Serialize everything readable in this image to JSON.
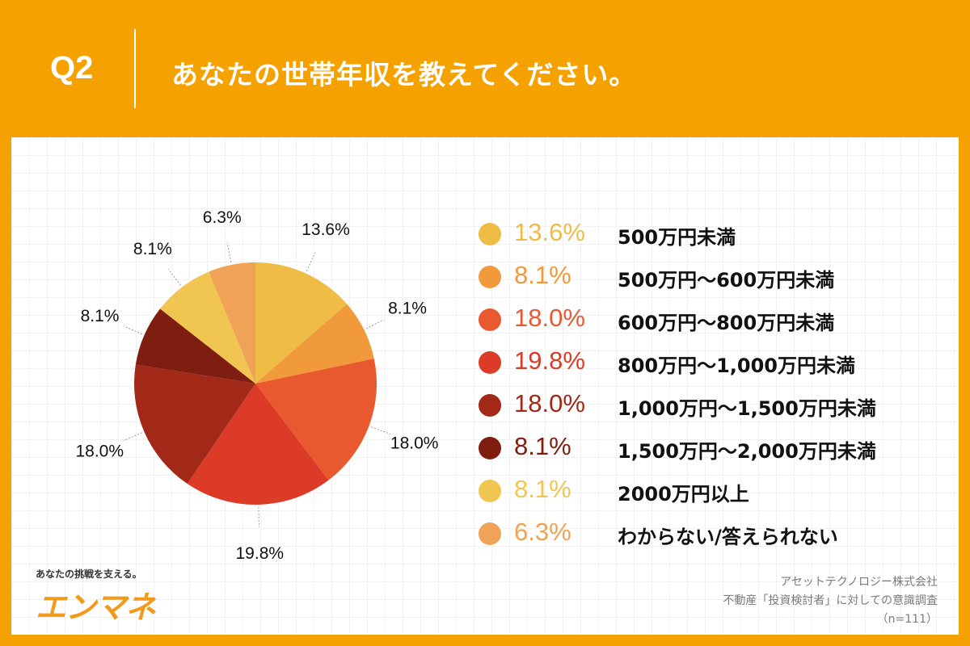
{
  "header": {
    "q_label": "Q2",
    "question": "あなたの世帯年収を教えてください。"
  },
  "colors": {
    "background": "#f5a200",
    "panel": "#ffffff",
    "header_text": "#ffffff"
  },
  "chart_data": {
    "type": "pie",
    "title": "",
    "categories": [
      "500万円未満",
      "500万円〜600万円未満",
      "600万円〜800万円未満",
      "800万円〜1,000万円未満",
      "1,000万円〜1,500万円未満",
      "1,500万円〜2,000万円未満",
      "2000万円以上",
      "わからない/答えられない"
    ],
    "values": [
      13.6,
      8.1,
      18.0,
      19.8,
      18.0,
      8.1,
      8.1,
      6.3
    ],
    "labels": [
      "13.6%",
      "8.1%",
      "18.0%",
      "19.8%",
      "18.0%",
      "8.1%",
      "8.1%",
      "6.3%"
    ],
    "colors": [
      "#efbc45",
      "#f09a3c",
      "#e9592f",
      "#dc3b27",
      "#a22817",
      "#7f1d11",
      "#f0c551",
      "#f0a256"
    ],
    "legend_text_colors": [
      "#efbc45",
      "#f09a3c",
      "#e9592f",
      "#dc3b27",
      "#a22817",
      "#7f1d11",
      "#f0c551",
      "#f0a256"
    ],
    "start": "12 o'clock",
    "direction": "clockwise",
    "legend_position": "right"
  },
  "brand": {
    "tagline": "あなたの挑戦を支える。",
    "name": "エンマネ"
  },
  "source": {
    "line1": "アセットテクノロジー株式会社",
    "line2": "不動産「投資検討者」に対しての意識調査",
    "line3": "（n=111）"
  }
}
